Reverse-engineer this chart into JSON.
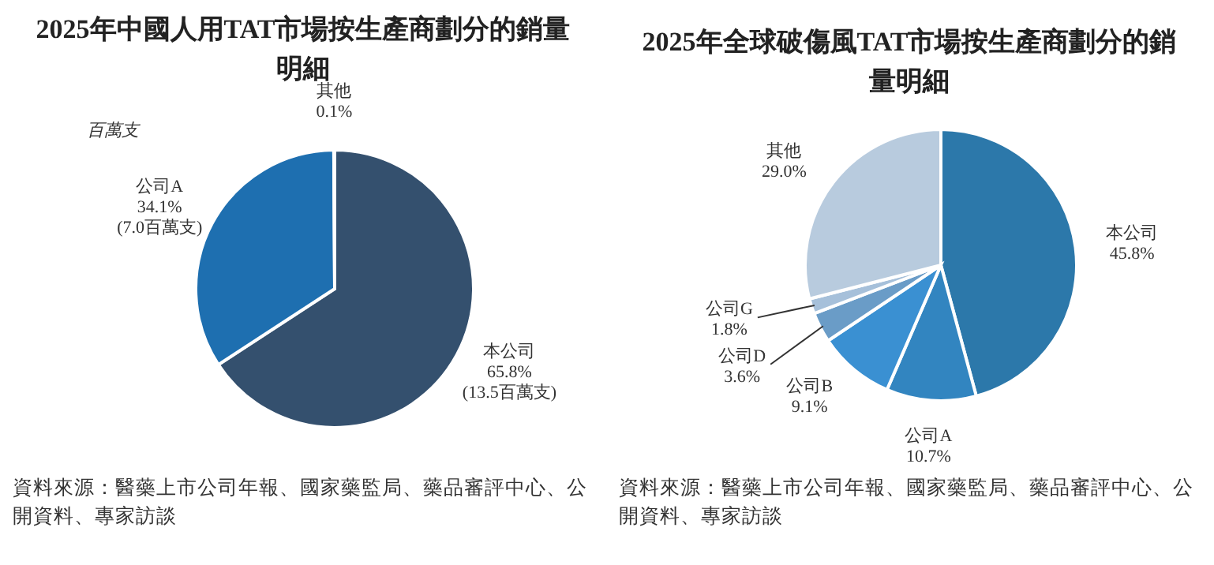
{
  "chart_data": [
    {
      "type": "pie",
      "title": "2025年中國人用TAT市場按生產商劃分的銷量明細",
      "categories": [
        "本公司",
        "公司A",
        "其他"
      ],
      "values": [
        65.8,
        34.1,
        0.1
      ],
      "colors": [
        "#34506e",
        "#1e6fb0",
        "#dde7f0"
      ],
      "value_labels": [
        "65.8%\n(13.5百萬支)",
        "34.1%\n(7.0百萬支)",
        "0.1%"
      ],
      "annotations": [
        "百萬支",
        "資料來源：醫藥上市公司年報、國家藥監局、藥品審評中心、公開資料、專家訪談"
      ]
    },
    {
      "type": "pie",
      "title": "2025年全球破傷風TAT市場按生產商劃分的銷量明細",
      "categories": [
        "本公司",
        "公司A",
        "公司B",
        "公司D",
        "公司G",
        "其他"
      ],
      "values": [
        45.8,
        10.7,
        9.1,
        3.6,
        1.8,
        29.0
      ],
      "colors": [
        "#2c78aa",
        "#3285c0",
        "#3a90d2",
        "#6a9cc7",
        "#a6c0da",
        "#b8cbde"
      ],
      "value_labels": [
        "45.8%",
        "10.7%",
        "9.1%",
        "3.6%",
        "1.8%",
        "29.0%"
      ],
      "annotations": [
        "資料來源：醫藥上市公司年報、國家藥監局、藥品審評中心、公開資料、專家訪談"
      ]
    }
  ]
}
